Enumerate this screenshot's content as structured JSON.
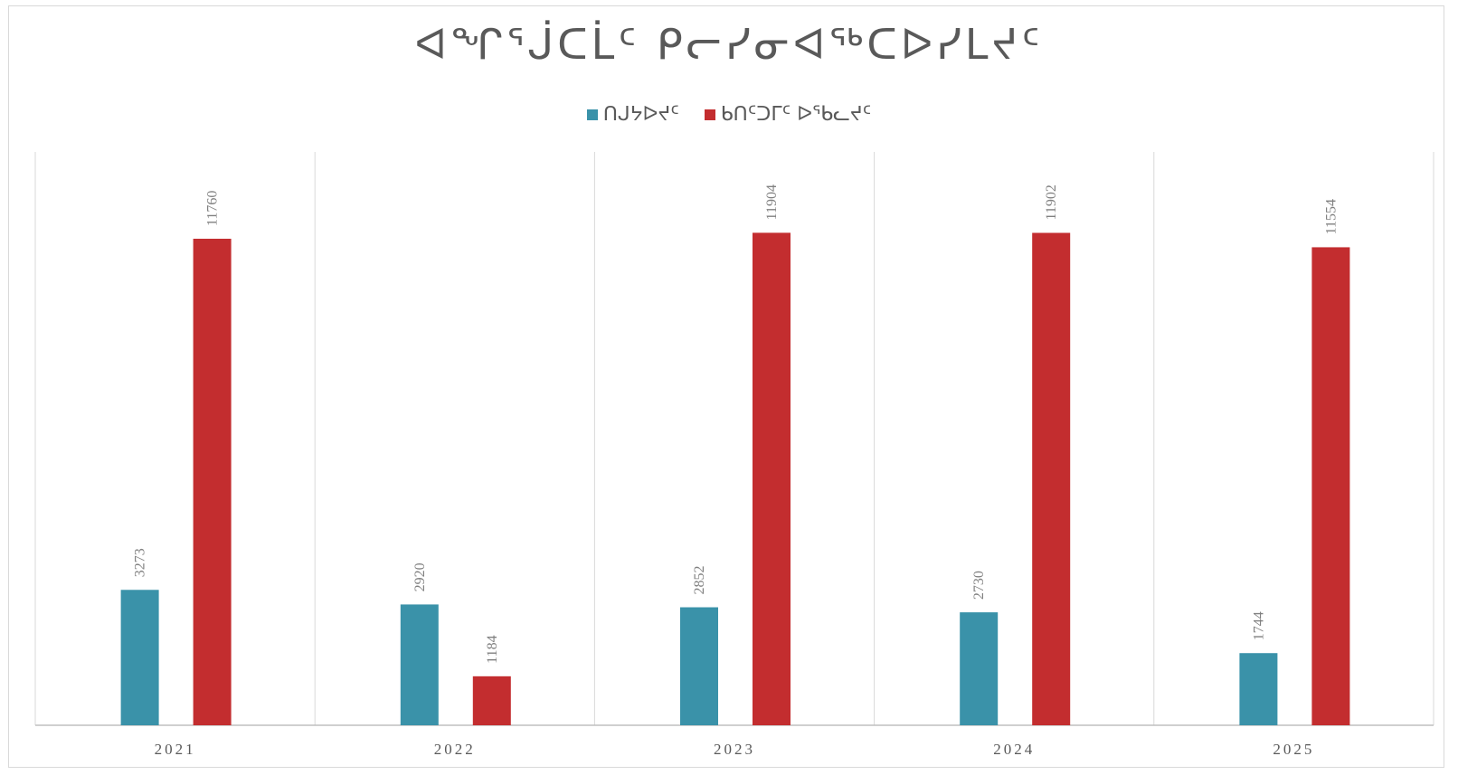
{
  "chart_data": {
    "type": "bar",
    "title": "ᐊᖏᕐᒎᑕᒫᑦ ᑭᓕᓯᓂᐊᖅᑕᐅᓯᒪᔪᑦ",
    "categories": [
      "2021",
      "2022",
      "2023",
      "2024",
      "2025"
    ],
    "series": [
      {
        "name": "ᑎᒍᔭᐅᔪᑦ",
        "color": "#3a92a9",
        "values": [
          3273,
          2920,
          2852,
          2730,
          1744
        ]
      },
      {
        "name": "ᑲᑎᑦᑐᒥᑦ ᐅᖃᓚᔪᑦ",
        "color": "#c32d2f",
        "values": [
          11760,
          1184,
          11904,
          11902,
          11554
        ]
      }
    ],
    "ylim": [
      0,
      14000
    ],
    "grid": "vertical category dividers",
    "legend_position": "top"
  }
}
